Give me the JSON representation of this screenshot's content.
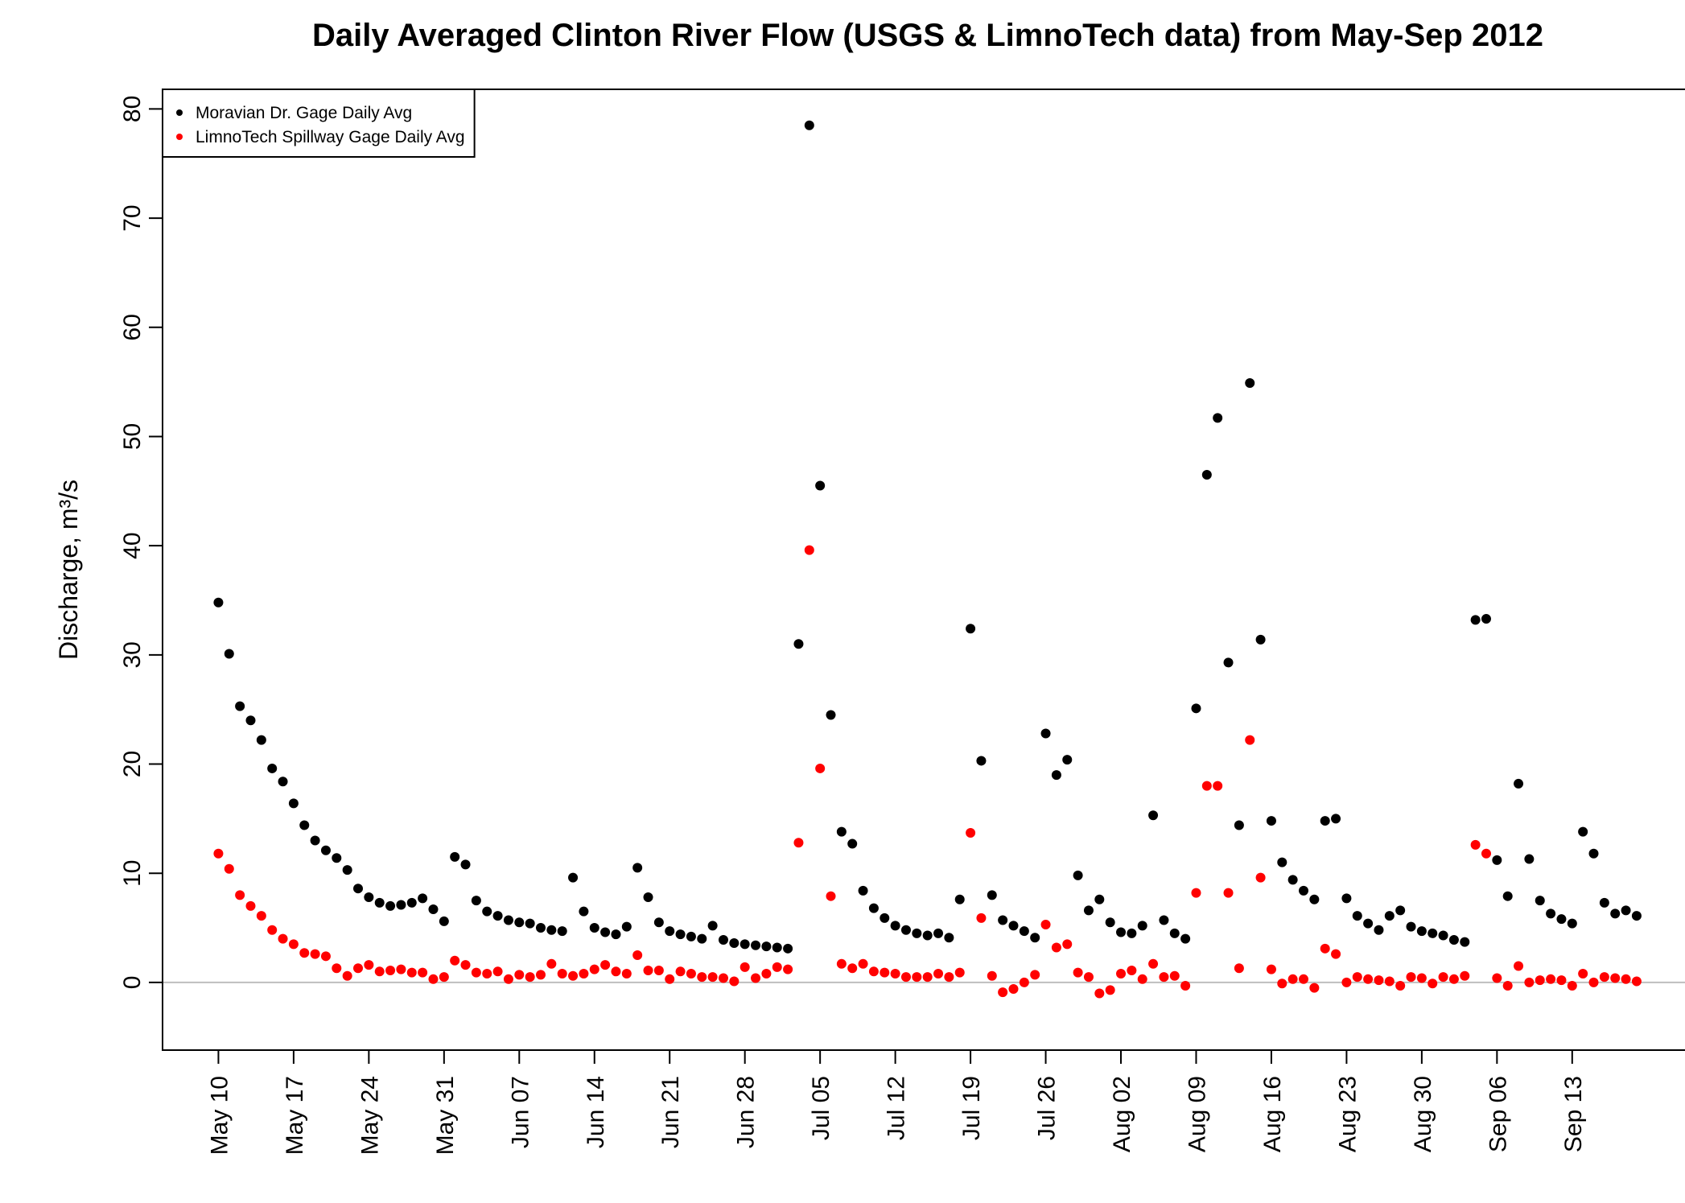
{
  "chart_data": {
    "type": "scatter",
    "title": "Daily Averaged Clinton River Flow (USGS & LimnoTech data) from May-Sep 2012",
    "y_label": "Discharge, m³/s",
    "x": [
      "May 10",
      "May 11",
      "May 12",
      "May 13",
      "May 14",
      "May 15",
      "May 16",
      "May 17",
      "May 18",
      "May 19",
      "May 20",
      "May 21",
      "May 22",
      "May 23",
      "May 24",
      "May 25",
      "May 26",
      "May 27",
      "May 28",
      "May 29",
      "May 30",
      "May 31",
      "Jun 01",
      "Jun 02",
      "Jun 03",
      "Jun 04",
      "Jun 05",
      "Jun 06",
      "Jun 07",
      "Jun 08",
      "Jun 09",
      "Jun 10",
      "Jun 11",
      "Jun 12",
      "Jun 13",
      "Jun 14",
      "Jun 15",
      "Jun 16",
      "Jun 17",
      "Jun 18",
      "Jun 19",
      "Jun 20",
      "Jun 21",
      "Jun 22",
      "Jun 23",
      "Jun 24",
      "Jun 25",
      "Jun 26",
      "Jun 27",
      "Jun 28",
      "Jun 29",
      "Jun 30",
      "Jul 01",
      "Jul 02",
      "Jul 03",
      "Jul 04",
      "Jul 05",
      "Jul 06",
      "Jul 07",
      "Jul 08",
      "Jul 09",
      "Jul 10",
      "Jul 11",
      "Jul 12",
      "Jul 13",
      "Jul 14",
      "Jul 15",
      "Jul 16",
      "Jul 17",
      "Jul 18",
      "Jul 19",
      "Jul 20",
      "Jul 21",
      "Jul 22",
      "Jul 23",
      "Jul 24",
      "Jul 25",
      "Jul 26",
      "Jul 27",
      "Jul 28",
      "Jul 29",
      "Jul 30",
      "Jul 31",
      "Aug 01",
      "Aug 02",
      "Aug 03",
      "Aug 04",
      "Aug 05",
      "Aug 06",
      "Aug 07",
      "Aug 08",
      "Aug 09",
      "Aug 10",
      "Aug 11",
      "Aug 12",
      "Aug 13",
      "Aug 14",
      "Aug 15",
      "Aug 16",
      "Aug 17",
      "Aug 18",
      "Aug 19",
      "Aug 20",
      "Aug 21",
      "Aug 22",
      "Aug 23",
      "Aug 24",
      "Aug 25",
      "Aug 26",
      "Aug 27",
      "Aug 28",
      "Aug 29",
      "Aug 30",
      "Aug 31",
      "Sep 01",
      "Sep 02",
      "Sep 03",
      "Sep 04",
      "Sep 05",
      "Sep 06",
      "Sep 07",
      "Sep 08",
      "Sep 09",
      "Sep 10",
      "Sep 11",
      "Sep 12",
      "Sep 13",
      "Sep 14",
      "Sep 15",
      "Sep 16",
      "Sep 17",
      "Sep 18",
      "Sep 19"
    ],
    "xticks": [
      "May 10",
      "May 17",
      "May 24",
      "May 31",
      "Jun 07",
      "Jun 14",
      "Jun 21",
      "Jun 28",
      "Jul 05",
      "Jul 12",
      "Jul 19",
      "Jul 26",
      "Aug 02",
      "Aug 09",
      "Aug 16",
      "Aug 23",
      "Aug 30",
      "Sep 06",
      "Sep 13"
    ],
    "series": [
      {
        "name": "Moravian Dr. Gage Daily Avg",
        "color": "#000000",
        "values": [
          34.8,
          30.1,
          25.3,
          24.0,
          22.2,
          19.6,
          18.4,
          16.4,
          14.4,
          13.0,
          12.1,
          11.4,
          10.3,
          8.6,
          7.8,
          7.3,
          7.0,
          7.1,
          7.3,
          7.7,
          6.7,
          5.6,
          11.5,
          10.8,
          7.5,
          6.5,
          6.1,
          5.7,
          5.5,
          5.4,
          5.0,
          4.8,
          4.7,
          9.6,
          6.5,
          5.0,
          4.6,
          4.4,
          5.1,
          10.5,
          7.8,
          5.5,
          4.7,
          4.4,
          4.2,
          4.0,
          5.2,
          3.9,
          3.6,
          3.5,
          3.4,
          3.3,
          3.2,
          3.1,
          31.0,
          78.5,
          45.5,
          24.5,
          13.8,
          12.7,
          8.4,
          6.8,
          5.9,
          5.2,
          4.8,
          4.5,
          4.3,
          4.5,
          4.1,
          7.6,
          32.4,
          20.3,
          8.0,
          5.7,
          5.2,
          4.7,
          4.1,
          22.8,
          19.0,
          20.4,
          9.8,
          6.6,
          7.6,
          5.5,
          4.6,
          4.5,
          5.2,
          15.3,
          5.7,
          4.5,
          4.0,
          25.1,
          46.5,
          51.7,
          29.3,
          14.4,
          54.9,
          31.4,
          14.8,
          11.0,
          9.4,
          8.4,
          7.6,
          14.8,
          15.0,
          7.7,
          6.1,
          5.4,
          4.8,
          6.1,
          6.6,
          5.1,
          4.7,
          4.5,
          4.3,
          3.9,
          3.7,
          33.2,
          33.3,
          11.2,
          7.9,
          18.2,
          11.3,
          7.5,
          6.3,
          5.8,
          5.4,
          13.8,
          11.8,
          7.3,
          6.3,
          6.6,
          6.1
        ]
      },
      {
        "name": "LimnoTech Spillway Gage Daily Avg",
        "color": "#ff0000",
        "values": [
          11.8,
          10.4,
          8.0,
          7.0,
          6.1,
          4.8,
          4.0,
          3.5,
          2.7,
          2.6,
          2.4,
          1.3,
          0.6,
          1.3,
          1.6,
          1.0,
          1.1,
          1.2,
          0.9,
          0.9,
          0.3,
          0.5,
          2.0,
          1.6,
          0.9,
          0.8,
          1.0,
          0.3,
          0.7,
          0.5,
          0.7,
          1.7,
          0.8,
          0.6,
          0.8,
          1.2,
          1.6,
          1.0,
          0.8,
          2.5,
          1.1,
          1.1,
          0.3,
          1.0,
          0.8,
          0.5,
          0.5,
          0.4,
          0.1,
          1.4,
          0.4,
          0.8,
          1.4,
          1.2,
          12.8,
          39.6,
          19.6,
          7.9,
          1.7,
          1.3,
          1.7,
          1.0,
          0.9,
          0.8,
          0.5,
          0.5,
          0.5,
          0.8,
          0.5,
          0.9,
          13.7,
          5.9,
          0.6,
          -0.9,
          -0.6,
          0.0,
          0.7,
          5.3,
          3.2,
          3.5,
          0.9,
          0.5,
          -1.0,
          -0.7,
          0.8,
          1.1,
          0.3,
          1.7,
          0.5,
          0.6,
          -0.3,
          8.2,
          18.0,
          18.0,
          8.2,
          1.3,
          22.2,
          9.6,
          1.2,
          -0.1,
          0.3,
          0.3,
          -0.5,
          3.1,
          2.6,
          0.0,
          0.5,
          0.3,
          0.2,
          0.1,
          -0.3,
          0.5,
          0.4,
          -0.1,
          0.5,
          0.3,
          0.6,
          12.6,
          11.8,
          0.4,
          -0.3,
          1.5,
          0.0,
          0.2,
          0.3,
          0.2,
          -0.3,
          0.8,
          0.0,
          0.5,
          0.4,
          0.3,
          0.1
        ]
      }
    ],
    "ylim": [
      -6.2,
      81.8
    ],
    "yticks": [
      0,
      10,
      20,
      30,
      40,
      50,
      60,
      70,
      80
    ],
    "hline": 0,
    "hline_color": "#bebebe",
    "legend": "top-left",
    "grid": false
  }
}
